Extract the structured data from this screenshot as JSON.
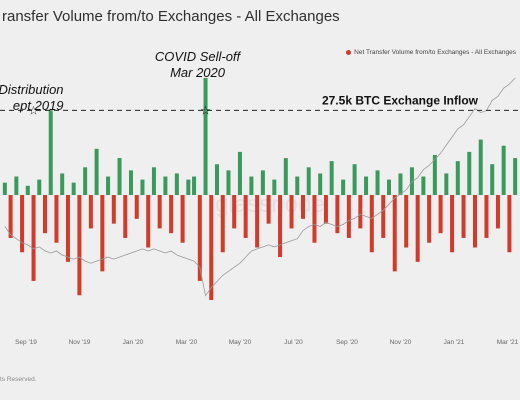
{
  "header": {
    "title": "ransfer Volume from/to Exchanges - All Exchanges"
  },
  "legend": {
    "label": "Net Transfer Volume from/to Exchanges - All Exchanges"
  },
  "footer": {
    "copyright": "ts Reserved."
  },
  "watermark": "glassnode",
  "colors": {
    "inflow": "#3a9a5b",
    "outflow": "#d23a2a",
    "price": "#9a9a9a",
    "background": "#efefef"
  },
  "chart_data": {
    "type": "bar",
    "title": "ransfer Volume from/to Exchanges - All Exchanges",
    "x_axis": {
      "ticks": [
        "Sep '19",
        "Nov '19",
        "Jan '20",
        "Mar '20",
        "May '20",
        "Jul '20",
        "Sep '20",
        "Nov '20",
        "Jan '21",
        "Mar '21"
      ]
    },
    "y_range": [
      -25000,
      40000
    ],
    "reference_line": {
      "value": 27500,
      "label": "27.5k BTC Exchange Inflow",
      "style": "dashed"
    },
    "annotations": [
      {
        "lines": [
          "Distribution",
          "ept 2019"
        ],
        "x": 5,
        "style": "italic"
      },
      {
        "lines": [
          "COVID Sell-off",
          "Mar 2020"
        ],
        "x": 35,
        "style": "italic"
      }
    ],
    "series": [
      {
        "name": "Net Transfer Volume from/to Exchanges - All Exchanges",
        "note": "weekly net flow, positive = inflow, negative = outflow",
        "values": [
          4000,
          -9000,
          6000,
          -12000,
          3000,
          -18000,
          5000,
          -8000,
          27500,
          -10000,
          7000,
          -14000,
          4000,
          -21000,
          9000,
          -7000,
          15000,
          -16000,
          6000,
          -6000,
          12000,
          -9000,
          8000,
          -5000,
          5000,
          -11000,
          9000,
          -7000,
          6000,
          -8000,
          7000,
          -10000,
          5000,
          6000,
          -18000,
          38000,
          -22000,
          10000,
          -12000,
          8000,
          -7000,
          14000,
          -9000,
          6000,
          -11000,
          8000,
          -6000,
          5000,
          -13000,
          12000,
          -7000,
          6000,
          -5000,
          9000,
          -10000,
          7000,
          -6000,
          11000,
          -8000,
          5000,
          -9000,
          10000,
          -7000,
          6000,
          -12000,
          8000,
          -9000,
          5000,
          -16000,
          7000,
          -11000,
          9000,
          -14000,
          6000,
          -10000,
          13000,
          -8000,
          7000,
          -12000,
          11000,
          -9000,
          14000,
          -11000,
          18000,
          -9000,
          10000,
          -7000,
          16000,
          -12000,
          12000
        ]
      },
      {
        "name": "BTC price",
        "note": "grey overlay line, relative level 0-1",
        "values": [
          0.42,
          0.38,
          0.36,
          0.34,
          0.33,
          0.31,
          0.32,
          0.3,
          0.29,
          0.3,
          0.28,
          0.27,
          0.26,
          0.27,
          0.25,
          0.24,
          0.25,
          0.26,
          0.27,
          0.26,
          0.27,
          0.28,
          0.29,
          0.3,
          0.31,
          0.3,
          0.31,
          0.3,
          0.29,
          0.3,
          0.28,
          0.27,
          0.26,
          0.25,
          0.22,
          0.08,
          0.12,
          0.15,
          0.18,
          0.2,
          0.22,
          0.24,
          0.27,
          0.3,
          0.31,
          0.32,
          0.33,
          0.32,
          0.33,
          0.34,
          0.35,
          0.36,
          0.4,
          0.42,
          0.43,
          0.42,
          0.44,
          0.43,
          0.42,
          0.43,
          0.45,
          0.46,
          0.48,
          0.47,
          0.46,
          0.48,
          0.5,
          0.53,
          0.56,
          0.58,
          0.6,
          0.64,
          0.66,
          0.7,
          0.72,
          0.75,
          0.78,
          0.82,
          0.86,
          0.9,
          0.92,
          0.96,
          1.0,
          0.98,
          0.99,
          1.04,
          1.06,
          1.1,
          1.12,
          1.15
        ]
      }
    ]
  }
}
